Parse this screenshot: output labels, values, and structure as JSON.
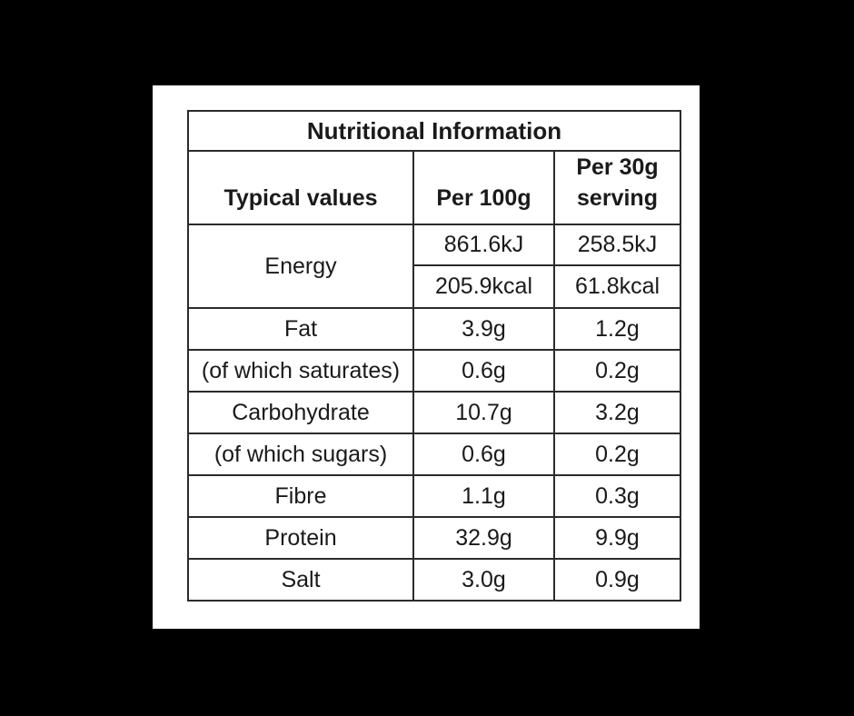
{
  "nutrition_table": {
    "title": "Nutritional Information",
    "header": {
      "label_col": "Typical values",
      "per100_col": "Per 100g",
      "per30_col": "Per 30g serving"
    },
    "energy": {
      "label": "Energy",
      "kj": {
        "per100g": "861.6kJ",
        "per30g": "258.5kJ"
      },
      "kcal": {
        "per100g": "205.9kcal",
        "per30g": "61.8kcal"
      }
    },
    "rows": [
      {
        "label": "Fat",
        "per100g": "3.9g",
        "per30g": "1.2g"
      },
      {
        "label": "(of which saturates)",
        "per100g": "0.6g",
        "per30g": "0.2g"
      },
      {
        "label": "Carbohydrate",
        "per100g": "10.7g",
        "per30g": "3.2g"
      },
      {
        "label": "(of which sugars)",
        "per100g": "0.6g",
        "per30g": "0.2g"
      },
      {
        "label": "Fibre",
        "per100g": "1.1g",
        "per30g": "0.3g"
      },
      {
        "label": "Protein",
        "per100g": "32.9g",
        "per30g": "9.9g"
      },
      {
        "label": "Salt",
        "per100g": "3.0g",
        "per30g": "0.9g"
      }
    ],
    "colors": {
      "page_background": "#000000",
      "panel_background": "#ffffff",
      "table_border": "#2b2b2b",
      "text": "#1a1a1a"
    }
  }
}
